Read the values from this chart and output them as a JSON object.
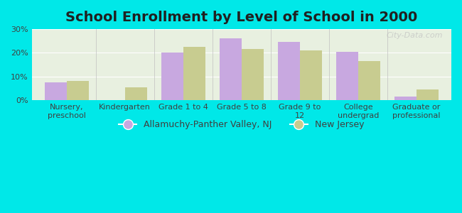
{
  "title": "School Enrollment by Level of School in 2000",
  "categories": [
    "Nursery,\npreschool",
    "Kindergarten",
    "Grade 1 to 4",
    "Grade 5 to 8",
    "Grade 9 to\n12",
    "College\nundergrad",
    "Graduate or\nprofessional"
  ],
  "allamuchy_values": [
    7.5,
    0,
    20.0,
    26.0,
    24.5,
    20.5,
    1.5
  ],
  "nj_values": [
    8.0,
    5.5,
    22.5,
    21.5,
    21.0,
    16.5,
    4.5
  ],
  "allamuchy_color": "#c8a8e0",
  "nj_color": "#c8cc90",
  "background_color": "#00e8e8",
  "plot_bg_color": "#e8f0e0",
  "ylim": [
    0,
    30
  ],
  "yticks": [
    0,
    10,
    20,
    30
  ],
  "ytick_labels": [
    "0%",
    "10%",
    "20%",
    "30%"
  ],
  "legend_label_allamuchy": "Allamuchy-Panther Valley, NJ",
  "legend_label_nj": "New Jersey",
  "title_fontsize": 14,
  "tick_fontsize": 8,
  "legend_fontsize": 9,
  "bar_width": 0.38,
  "watermark": "City-Data.com"
}
